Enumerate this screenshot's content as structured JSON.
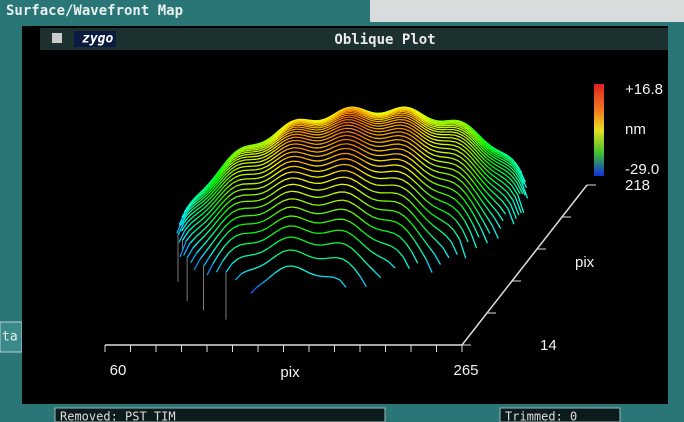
{
  "window": {
    "title": "Surface/Wavefront Map",
    "side_label": "ta"
  },
  "panel": {
    "logo": "zygo",
    "title": "Oblique Plot"
  },
  "colorbar": {
    "max_label": "+16.8",
    "unit": "nm",
    "min_label": "-29.0"
  },
  "axes": {
    "x_start": "60",
    "x_label": "pix",
    "x_end": "265",
    "y_start": "14",
    "y_label": "pix",
    "y_end": "218"
  },
  "status": {
    "removed": "Removed: PST TIM",
    "trimmed": "Trimmed: 0"
  }
}
